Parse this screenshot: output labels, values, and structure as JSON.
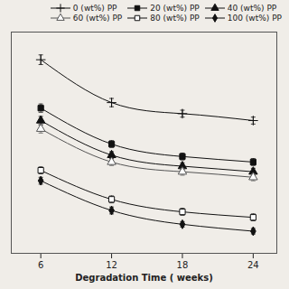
{
  "chart_data": {
    "type": "line",
    "xlabel": "Degradation Time ( weeks)",
    "x": [
      6,
      12,
      18,
      24
    ],
    "xlim": [
      3.5,
      26
    ],
    "xticks": [
      6,
      12,
      18,
      24
    ],
    "ylim": [
      1.0,
      4.2
    ],
    "yticks": [],
    "tick_labels": "x",
    "legend": "upper right",
    "series": [
      {
        "name": "0 (wt%) PP",
        "color": "#111111",
        "marker": "plus",
        "line_style": "solid",
        "values": [
          3.8,
          3.18,
          3.02,
          2.92
        ],
        "yerr": [
          0.07,
          0.06,
          0.05,
          0.05
        ]
      },
      {
        "name": "20 (wt%) PP",
        "color": "#111111",
        "marker": "square",
        "line_style": "solid",
        "values": [
          3.1,
          2.58,
          2.4,
          2.32
        ],
        "yerr": [
          0.06,
          0.05,
          0.05,
          0.05
        ]
      },
      {
        "name": "40 (wt%) PP",
        "color": "#111111",
        "marker": "triangle",
        "line_style": "solid",
        "values": [
          2.92,
          2.42,
          2.26,
          2.18
        ],
        "yerr": [
          0.06,
          0.05,
          0.05,
          0.05
        ]
      },
      {
        "name": "60 (wt%) PP",
        "color": "#555555",
        "marker": "triangle-open",
        "line_style": "solid",
        "values": [
          2.8,
          2.32,
          2.18,
          2.1
        ],
        "yerr": [
          0.06,
          0.05,
          0.05,
          0.05
        ]
      },
      {
        "name": "80 (wt%) PP",
        "color": "#111111",
        "marker": "square-open",
        "line_style": "solid",
        "values": [
          2.2,
          1.78,
          1.6,
          1.52
        ],
        "yerr": [
          0.05,
          0.05,
          0.05,
          0.05
        ]
      },
      {
        "name": "100 (wt%) PP",
        "color": "#111111",
        "marker": "diamond",
        "line_style": "solid",
        "values": [
          2.05,
          1.62,
          1.42,
          1.32
        ],
        "yerr": [
          0.05,
          0.05,
          0.04,
          0.04
        ]
      }
    ]
  }
}
